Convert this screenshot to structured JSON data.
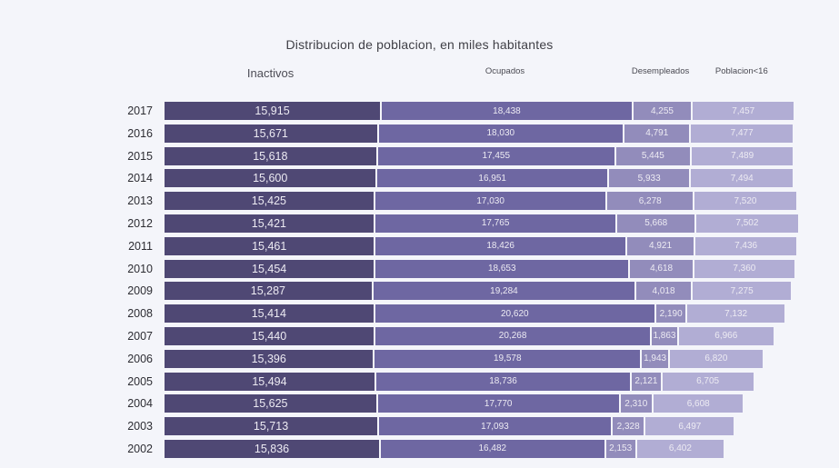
{
  "title": "Distribucion de poblacion, en miles habitantes",
  "chart_data": {
    "type": "bar",
    "orientation": "horizontal",
    "stacked": true,
    "grid": false,
    "legend_position": "top-as-column-headers",
    "title": "Distribucion de poblacion, en miles habitantes",
    "background_color": "#f4f5fa",
    "value_label_color": "#edebf3",
    "categories": [
      "2017",
      "2016",
      "2015",
      "2014",
      "2013",
      "2012",
      "2011",
      "2010",
      "2009",
      "2008",
      "2007",
      "2006",
      "2005",
      "2004",
      "2003",
      "2002"
    ],
    "series": [
      {
        "name": "Inactivos",
        "key": "inactivos",
        "color": "#4f4874",
        "values": [
          15915,
          15671,
          15618,
          15600,
          15425,
          15421,
          15461,
          15454,
          15287,
          15414,
          15440,
          15396,
          15494,
          15625,
          15713,
          15836
        ],
        "value_labels": [
          "15,915",
          "15,671",
          "15,618",
          "15,600",
          "15,425",
          "15,421",
          "15,461",
          "15,454",
          "15,287",
          "15,414",
          "15,440",
          "15,396",
          "15,494",
          "15,625",
          "15,713",
          "15,836"
        ]
      },
      {
        "name": "Ocupados",
        "key": "ocupados",
        "color": "#6e67a2",
        "values": [
          18438,
          18030,
          17455,
          16951,
          17030,
          17765,
          18426,
          18653,
          19284,
          20620,
          20268,
          19578,
          18736,
          17770,
          17093,
          16482
        ],
        "value_labels": [
          "18,438",
          "18,030",
          "17,455",
          "16,951",
          "17,030",
          "17,765",
          "18,426",
          "18,653",
          "19,284",
          "20,620",
          "20,268",
          "19,578",
          "18,736",
          "17,770",
          "17,093",
          "16,482"
        ]
      },
      {
        "name": "Desempleados",
        "key": "desempleados",
        "color": "#928cbb",
        "values": [
          4255,
          4791,
          5445,
          5933,
          6278,
          5668,
          4921,
          4618,
          4018,
          2190,
          1863,
          1943,
          2121,
          2310,
          2328,
          2153
        ],
        "value_labels": [
          "4,255",
          "4,791",
          "5,445",
          "5,933",
          "6,278",
          "5,668",
          "4,921",
          "4,618",
          "4,018",
          "2,190",
          "1,863",
          "1,943",
          "2,121",
          "2,310",
          "2,328",
          "2,153"
        ]
      },
      {
        "name": "Poblacion<16",
        "key": "poblacion-16",
        "color": "#b1add4",
        "values": [
          7457,
          7477,
          7489,
          7494,
          7520,
          7502,
          7436,
          7360,
          7275,
          7132,
          6966,
          6820,
          6705,
          6608,
          6497,
          6402
        ],
        "value_labels": [
          "7,457",
          "7,477",
          "7,489",
          "7,494",
          "7,520",
          "7,502",
          "7,436",
          "7,360",
          "7,275",
          "7,132",
          "6,966",
          "6,820",
          "6,705",
          "6,608",
          "6,497",
          "6,402"
        ]
      }
    ]
  }
}
